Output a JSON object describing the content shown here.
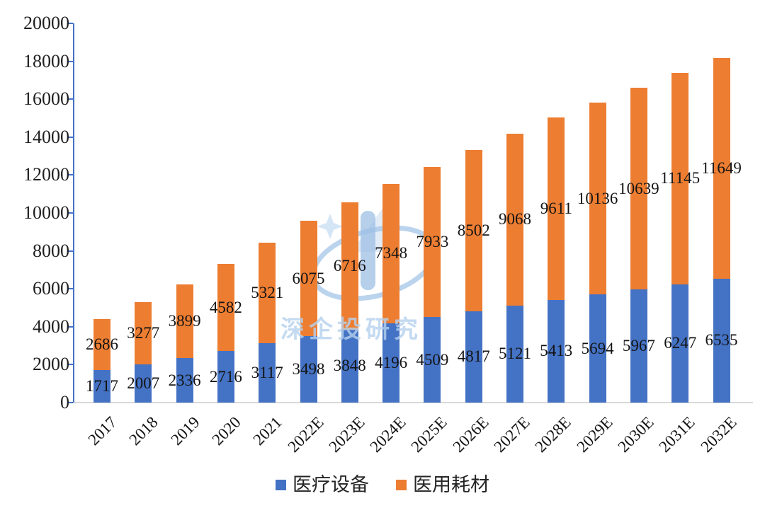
{
  "watermark": {
    "text": "深企投研究"
  },
  "legend": {
    "items": [
      {
        "label": "医疗设备",
        "color": "#4472C4"
      },
      {
        "label": "医用耗材",
        "color": "#ED7D31"
      }
    ]
  },
  "colors": {
    "series_blue": "#4472C4",
    "series_orange": "#ED7D31",
    "axis_line": "#4472C4",
    "baseline_gray": "#D9D9D9",
    "label_text": "#141414",
    "watermark_blue": "#AECBEA"
  },
  "chart_data": {
    "type": "bar",
    "stacked": true,
    "title": "",
    "xlabel": "",
    "ylabel": "",
    "ylim": [
      0,
      20000
    ],
    "ytick_step": 2000,
    "yticks": [
      0,
      2000,
      4000,
      6000,
      8000,
      10000,
      12000,
      14000,
      16000,
      18000,
      20000
    ],
    "grid": false,
    "legend_position": "bottom",
    "data_labels": "centered-in-segment",
    "categories": [
      "2017",
      "2018",
      "2019",
      "2020",
      "2021",
      "2022E",
      "2023E",
      "2024E",
      "2025E",
      "2026E",
      "2027E",
      "2028E",
      "2029E",
      "2030E",
      "2031E",
      "2032E"
    ],
    "series": [
      {
        "name": "医疗设备",
        "color": "#4472C4",
        "values": [
          1717,
          2007,
          2336,
          2716,
          3117,
          3498,
          3848,
          4196,
          4509,
          4817,
          5121,
          5413,
          5694,
          5967,
          6247,
          6535
        ]
      },
      {
        "name": "医用耗材",
        "color": "#ED7D31",
        "values": [
          2686,
          3277,
          3899,
          4582,
          5321,
          6075,
          6716,
          7348,
          7933,
          8502,
          9068,
          9611,
          10136,
          10639,
          11145,
          11649
        ]
      }
    ]
  }
}
